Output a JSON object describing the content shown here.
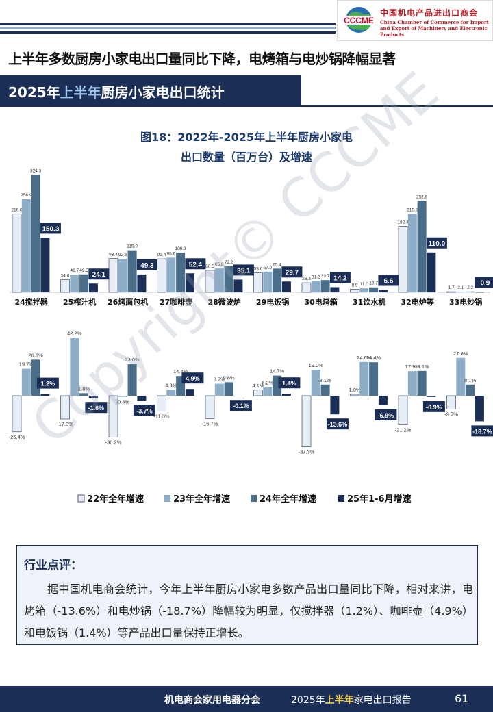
{
  "header": {
    "logo_cn": "中国机电产品进出口商会",
    "logo_en_1": "China Chamber of Commerce for Import",
    "logo_en_2": "and Export of Machinery and Electronic Products",
    "logo_mark": "CCCME"
  },
  "headline": "上半年多数厨房小家电出口量同比下降，电烤箱与电炒锅降幅显著",
  "banner": {
    "year": "2025年",
    "half": "上半年",
    "rest": "厨房小家电出口统计"
  },
  "watermark": "Copyright© CCCME",
  "chart_data": [
    {
      "type": "bar",
      "title": "图18：2022年-2025年上半年厨房小家电",
      "subtitle": "出口数量（百万台）及增速",
      "categories": [
        "24搅拌器",
        "25榨汁机",
        "26烤面包机",
        "27咖啡壶",
        "28微波炉",
        "29电饭锅",
        "30电烤箱",
        "31饮水机",
        "32电炉等",
        "33电炒锅"
      ],
      "series": [
        {
          "name": "22年全年",
          "color": "#e8eef5",
          "values": [
            216.0,
            34.6,
            93.4,
            92.4,
            60.5,
            53.6,
            26.3,
            8.9,
            182.4,
            1.7
          ],
          "labels": [
            "216.0",
            "34.6",
            "93.4",
            "92.4",
            "60.5",
            "53.6",
            "26.3",
            "8.9",
            "182.4",
            "1.7"
          ]
        },
        {
          "name": "23年全年",
          "color": "#8eadc9",
          "values": [
            256.9,
            48.7,
            92.6,
            95.6,
            65.8,
            57.0,
            31.2,
            11.0,
            215.9,
            2.1
          ],
          "labels": [
            "256.9",
            "48.7",
            "92.6",
            "95.6",
            "65.8",
            "57.0",
            "31.2",
            "11.0",
            "215.9",
            "2.1"
          ]
        },
        {
          "name": "24年全年",
          "color": "#4a6e8a",
          "values": [
            324.3,
            49.5,
            115.9,
            109.3,
            72.2,
            65.4,
            33.7,
            13.7,
            252.6,
            2.2
          ],
          "labels": [
            "324.3",
            "49.5",
            "115.9",
            "109.3",
            "72.2",
            "65.4",
            "33.7",
            "13.7",
            "252.6",
            "2.2"
          ]
        },
        {
          "name": "25年1-6月",
          "color": "#1b2e56",
          "values": [
            150.3,
            24.1,
            49.3,
            52.4,
            35.1,
            29.7,
            14.2,
            6.6,
            110.0,
            0.9
          ],
          "labels": [
            "150.3",
            "24.1",
            "49.3",
            "52.4",
            "35.1",
            "29.7",
            "14.2",
            "6.6",
            "110.0",
            "0.9"
          ]
        }
      ],
      "ylabel": "",
      "ylim": [
        0,
        340
      ]
    },
    {
      "type": "bar",
      "categories": [
        "24搅拌器",
        "25榨汁机",
        "26烤面包机",
        "27咖啡壶",
        "28微波炉",
        "29电饭锅",
        "30电烤箱",
        "31饮水机",
        "32电炉等",
        "33电炒锅"
      ],
      "series": [
        {
          "name": "22年全年增速",
          "color": "#e8eef5",
          "values": [
            -26.4,
            -17.0,
            -30.2,
            -11.3,
            -16.7,
            4.1,
            -37.3,
            1.0,
            -21.2,
            -9.7
          ],
          "labels": [
            "-26.4%",
            "-17.0%",
            "-30.2%",
            "-11.3%",
            "-16.7%",
            "4.1%",
            "-37.3%",
            "1.0%",
            "-21.2%",
            "-9.7%"
          ]
        },
        {
          "name": "23年全年增速",
          "color": "#8eadc9",
          "values": [
            19.7,
            42.2,
            -0.8,
            4.3,
            8.7,
            6.2,
            19.0,
            24.6,
            17.9,
            27.6
          ],
          "labels": [
            "19.7%",
            "42.2%",
            "-0.8%",
            "4.3%",
            "8.7%",
            "6.2%",
            "19.0%",
            "24.6%",
            "17.9%",
            "27.6%"
          ]
        },
        {
          "name": "24年全年增速",
          "color": "#4a6e8a",
          "values": [
            26.3,
            1.8,
            23.0,
            14.4,
            9.8,
            14.7,
            8.1,
            24.4,
            18.1,
            8.1
          ],
          "labels": [
            "26.3%",
            "1.8%",
            "23.0%",
            "14.4%",
            "9.8%",
            "14.7%",
            "8.1%",
            "24.4%",
            "18.1%",
            "8.1%"
          ]
        },
        {
          "name": "25年1-6月增速",
          "color": "#1b2e56",
          "values": [
            1.2,
            -1.6,
            -3.7,
            4.9,
            -0.1,
            1.4,
            -13.6,
            -6.9,
            -0.9,
            -18.7
          ],
          "labels": [
            "1.2%",
            "-1.6%",
            "-3.7%",
            "4.9%",
            "-0.1%",
            "1.4%",
            "-13.6%",
            "-6.9%",
            "-0.9%",
            "-18.7%"
          ]
        }
      ],
      "ylim": [
        -40,
        45
      ],
      "legend": [
        "22年全年增速",
        "23年全年增速",
        "24年全年增速",
        "25年1-6月增速"
      ],
      "legend_position": "bottom"
    }
  ],
  "comment": {
    "title": "行业点评：",
    "text": "据中国机电商会统计，今年上半年厨房小家电多数产品出口量同比下降，相对来讲，电烤箱（-13.6%）和电炒锅（-18.7%）降幅较为明显，仅搅拌器（1.2%）、咖啡壶（4.9%）和电饭锅（1.4%）等产品出口量保持正增长。"
  },
  "footer": {
    "org": "机电商会家用电器分会",
    "report_year": "2025年",
    "report_half": "上半年",
    "report_rest": "家电出口报告",
    "page": "61"
  }
}
